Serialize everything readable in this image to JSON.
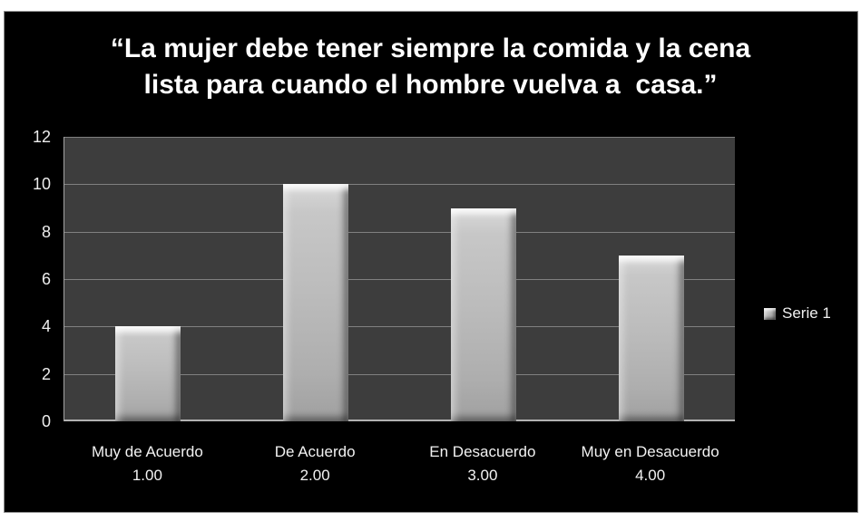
{
  "page": {
    "frame_background": "#ffffff",
    "slide_background": "#000000"
  },
  "chart_data": {
    "type": "bar",
    "title": "“La mujer debe tener siempre la comida y la cena lista para cuando el hombre vuelva a  casa.”",
    "title_lines": [
      "“La mujer debe tener siempre la comida y la cena",
      "lista para cuando el hombre vuelva a  casa.”"
    ],
    "categories": [
      "Muy de Acuerdo",
      "De Acuerdo",
      "En Desacuerdo",
      "Muy en Desacuerdo"
    ],
    "category_value_labels": [
      "1.00",
      "2.00",
      "3.00",
      "4.00"
    ],
    "series": [
      {
        "name": "Serie 1",
        "values": [
          4,
          10,
          9,
          7
        ]
      }
    ],
    "xlabel": "",
    "ylabel": "",
    "ylim": [
      0,
      12
    ],
    "yticks": [
      0,
      2,
      4,
      6,
      8,
      10,
      12
    ],
    "grid": true,
    "legend_position": "right",
    "colors": {
      "plot_background": "#3d3d3d",
      "gridline": "#808080",
      "axis_line": "#b2b2b2",
      "bar_fill": "#bcbcbc",
      "title_text": "#ffffff",
      "label_text": "#f0f0f0"
    }
  }
}
